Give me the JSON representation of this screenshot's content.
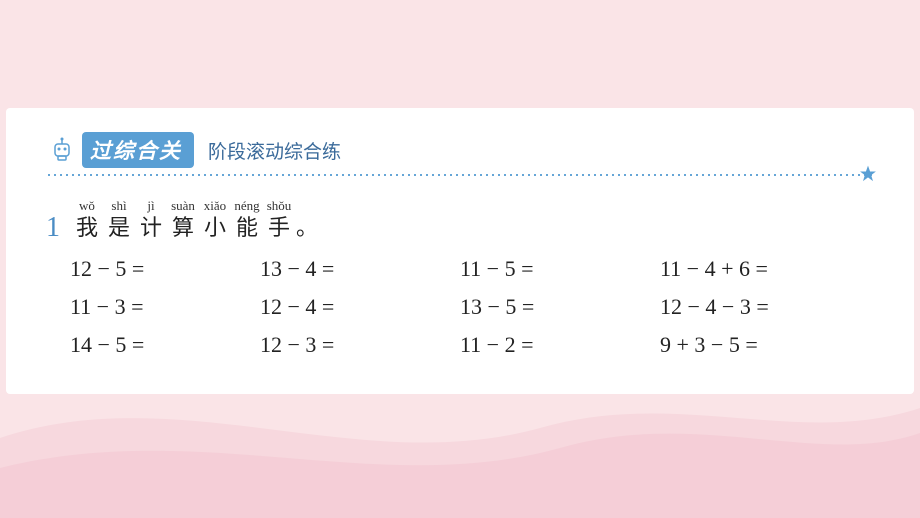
{
  "background_color": "#fae4e7",
  "card_background": "#ffffff",
  "accent_color": "#5a9fd4",
  "text_color": "#222222",
  "header": {
    "tag_label": "过综合关",
    "subtitle": "阶段滚动综合练",
    "robot_color": "#5a9fd4"
  },
  "question": {
    "number": "1",
    "title_chars": [
      {
        "pinyin": "wǒ",
        "hanzi": "我"
      },
      {
        "pinyin": "shì",
        "hanzi": "是"
      },
      {
        "pinyin": "jì",
        "hanzi": "计"
      },
      {
        "pinyin": "suàn",
        "hanzi": "算"
      },
      {
        "pinyin": "xiǎo",
        "hanzi": "小"
      },
      {
        "pinyin": "néng",
        "hanzi": "能"
      },
      {
        "pinyin": "shǒu",
        "hanzi": "手"
      }
    ],
    "period": "。",
    "math_rows": [
      [
        "12 − 5 =",
        "13 − 4 =",
        "11 − 5 =",
        "11 − 4 + 6 ="
      ],
      [
        "11 − 3 =",
        "12 − 4 =",
        "13 − 5 =",
        "12 − 4 − 3 ="
      ],
      [
        "14 − 5 =",
        "12 − 3 =",
        "11 − 2 =",
        " 9 + 3 − 5 ="
      ]
    ],
    "font_size_pt": 16
  },
  "waves": [
    {
      "color": "#f7d8de",
      "opacity": 1
    },
    {
      "color": "#f3cbd4",
      "opacity": 0.7
    }
  ]
}
